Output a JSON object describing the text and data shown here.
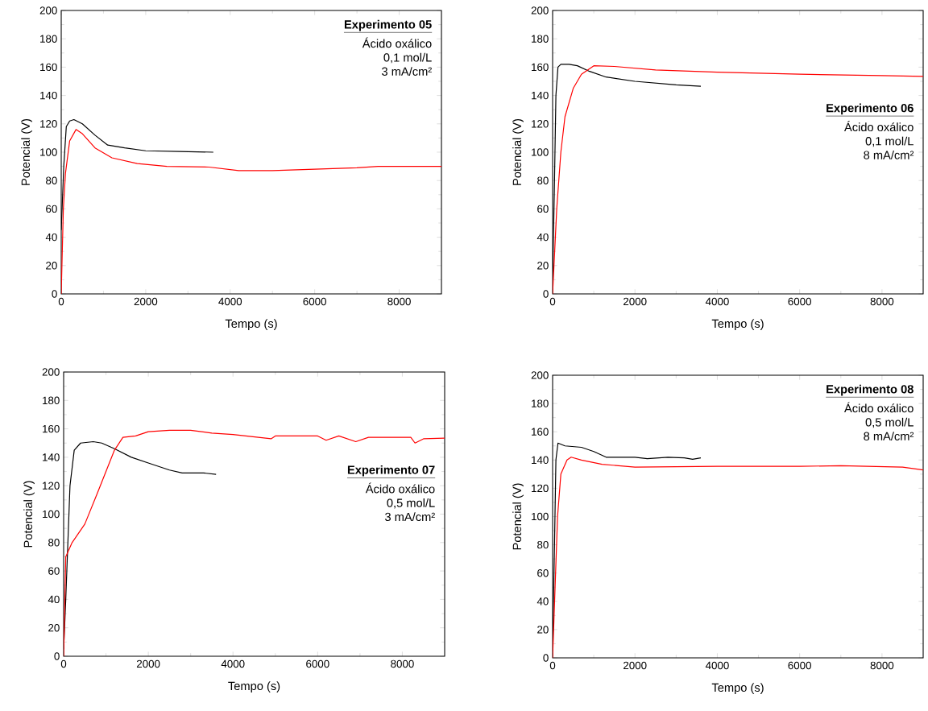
{
  "chart_data": [
    {
      "type": "line",
      "title": "Experimento 05",
      "annotations": [
        "Ácido oxálico",
        "0,1 mol/L",
        "3 mA/cm²"
      ],
      "xlabel": "Tempo (s)",
      "ylabel": "Potencial (V)",
      "xlim": [
        0,
        9000
      ],
      "ylim": [
        0,
        200
      ],
      "xticks": [
        0,
        2000,
        4000,
        6000,
        8000
      ],
      "yticks": [
        0,
        20,
        40,
        60,
        80,
        100,
        120,
        140,
        160,
        180,
        200
      ],
      "series": [
        {
          "color": "#000000",
          "x": [
            0,
            60,
            120,
            200,
            300,
            500,
            800,
            1100,
            1500,
            2000,
            2800,
            3600
          ],
          "values": [
            45,
            90,
            118,
            122,
            123,
            120,
            112,
            105,
            103,
            101,
            100.5,
            100
          ]
        },
        {
          "color": "#ff0000",
          "x": [
            0,
            50,
            100,
            200,
            350,
            500,
            800,
            1200,
            1800,
            2500,
            3500,
            4200,
            5000,
            6000,
            7000,
            7500,
            8500,
            9000
          ],
          "values": [
            0,
            60,
            85,
            108,
            116,
            113,
            103,
            96,
            92,
            90,
            89.5,
            87,
            87,
            88,
            89,
            90,
            90,
            90
          ]
        }
      ]
    },
    {
      "type": "line",
      "title": "Experimento 06",
      "annotations": [
        "Ácido oxálico",
        "0,1 mol/L",
        "8 mA/cm²"
      ],
      "xlabel": "Tempo (s)",
      "ylabel": "Potencial (V)",
      "xlim": [
        0,
        9000
      ],
      "ylim": [
        0,
        200
      ],
      "xticks": [
        0,
        2000,
        4000,
        6000,
        8000
      ],
      "yticks": [
        0,
        20,
        40,
        60,
        80,
        100,
        120,
        140,
        160,
        180,
        200
      ],
      "series": [
        {
          "color": "#000000",
          "x": [
            0,
            40,
            80,
            130,
            200,
            400,
            600,
            900,
            1300,
            2000,
            3000,
            3600
          ],
          "values": [
            10,
            70,
            140,
            160,
            162,
            162,
            161,
            157,
            153,
            150,
            147.5,
            146.5
          ]
        },
        {
          "color": "#ff0000",
          "x": [
            0,
            100,
            200,
            300,
            500,
            700,
            1000,
            1500,
            2500,
            4000,
            6000,
            8000,
            9000
          ],
          "values": [
            0,
            60,
            100,
            125,
            145,
            155,
            161,
            160.5,
            158,
            156.5,
            155,
            154,
            153.5
          ]
        }
      ]
    },
    {
      "type": "line",
      "title": "Experimento 07",
      "annotations": [
        "Ácido oxálico",
        "0,5 mol/L",
        "3 mA/cm²"
      ],
      "xlabel": "Tempo (s)",
      "ylabel": "Potencial (V)",
      "xlim": [
        0,
        9000
      ],
      "ylim": [
        0,
        200
      ],
      "xticks": [
        0,
        2000,
        4000,
        6000,
        8000
      ],
      "yticks": [
        0,
        20,
        40,
        60,
        80,
        100,
        120,
        140,
        160,
        180,
        200
      ],
      "series": [
        {
          "color": "#000000",
          "x": [
            0,
            50,
            100,
            150,
            250,
            400,
            700,
            900,
            1200,
            1600,
            2000,
            2500,
            2800,
            3300,
            3600
          ],
          "values": [
            5,
            40,
            80,
            120,
            145,
            150,
            151,
            150,
            146,
            140,
            136,
            131,
            129,
            129,
            128
          ]
        },
        {
          "color": "#ff0000",
          "x": [
            0,
            50,
            200,
            500,
            800,
            1000,
            1200,
            1400,
            1700,
            2000,
            2500,
            3000,
            3500,
            4000,
            4900,
            5000,
            6000,
            6200,
            6500,
            6900,
            7200,
            8200,
            8300,
            8500,
            9000
          ],
          "values": [
            0,
            70,
            80,
            93,
            115,
            130,
            145,
            154,
            155,
            158,
            159,
            159,
            157,
            156,
            153,
            155,
            155,
            152,
            155,
            151,
            154,
            154,
            150,
            153,
            153.5
          ]
        }
      ]
    },
    {
      "type": "line",
      "title": "Experimento 08",
      "annotations": [
        "Ácido oxálico",
        "0,5 mol/L",
        "8 mA/cm²"
      ],
      "xlabel": "Tempo (s)",
      "ylabel": "Potencial (V)",
      "xlim": [
        0,
        9000
      ],
      "ylim": [
        0,
        200
      ],
      "xticks": [
        0,
        2000,
        4000,
        6000,
        8000
      ],
      "yticks": [
        0,
        20,
        40,
        60,
        80,
        100,
        120,
        140,
        160,
        180,
        200
      ],
      "series": [
        {
          "color": "#000000",
          "x": [
            0,
            40,
            80,
            130,
            300,
            700,
            1000,
            1300,
            2000,
            2300,
            2800,
            3200,
            3400,
            3600
          ],
          "values": [
            5,
            70,
            140,
            152,
            150,
            149,
            146,
            142,
            142,
            141,
            142,
            141.5,
            140.5,
            141.5
          ]
        },
        {
          "color": "#ff0000",
          "x": [
            0,
            60,
            120,
            200,
            350,
            450,
            700,
            1200,
            2000,
            4000,
            6000,
            7000,
            8500,
            9000
          ],
          "values": [
            0,
            50,
            100,
            130,
            140,
            142,
            140,
            137,
            135,
            135.5,
            135.5,
            136,
            135,
            133
          ]
        }
      ]
    }
  ]
}
